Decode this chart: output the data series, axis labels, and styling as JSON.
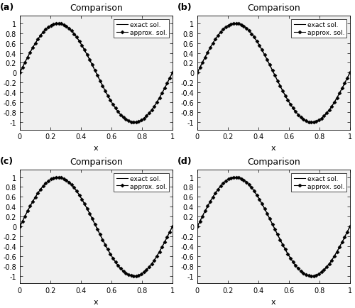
{
  "title": "Comparison",
  "xlabel": "x",
  "panel_labels": [
    "(a)",
    "(b)",
    "(c)",
    "(d)"
  ],
  "xlim": [
    0,
    1
  ],
  "ylim": [
    -1.15,
    1.15
  ],
  "xticks": [
    0,
    0.2,
    0.4,
    0.6,
    0.8,
    1.0
  ],
  "yticks": [
    -1,
    -0.8,
    -0.6,
    -0.4,
    -0.2,
    0,
    0.2,
    0.4,
    0.6,
    0.8,
    1
  ],
  "exact_color": "#000000",
  "approx_color": "#000000",
  "marker": "D",
  "marker_size": 2.5,
  "line_width": 0.8,
  "n_exact": 300,
  "n_approx": 60,
  "legend_exact": "exact sol.",
  "legend_approx": "approx. sol.",
  "bg_color": "#ffffff",
  "axes_bg_color": "#f0f0f0",
  "tick_labelsize": 7,
  "title_fontsize": 9,
  "label_fontsize": 8,
  "panel_label_fontsize": 9,
  "legend_fontsize": 6.5
}
